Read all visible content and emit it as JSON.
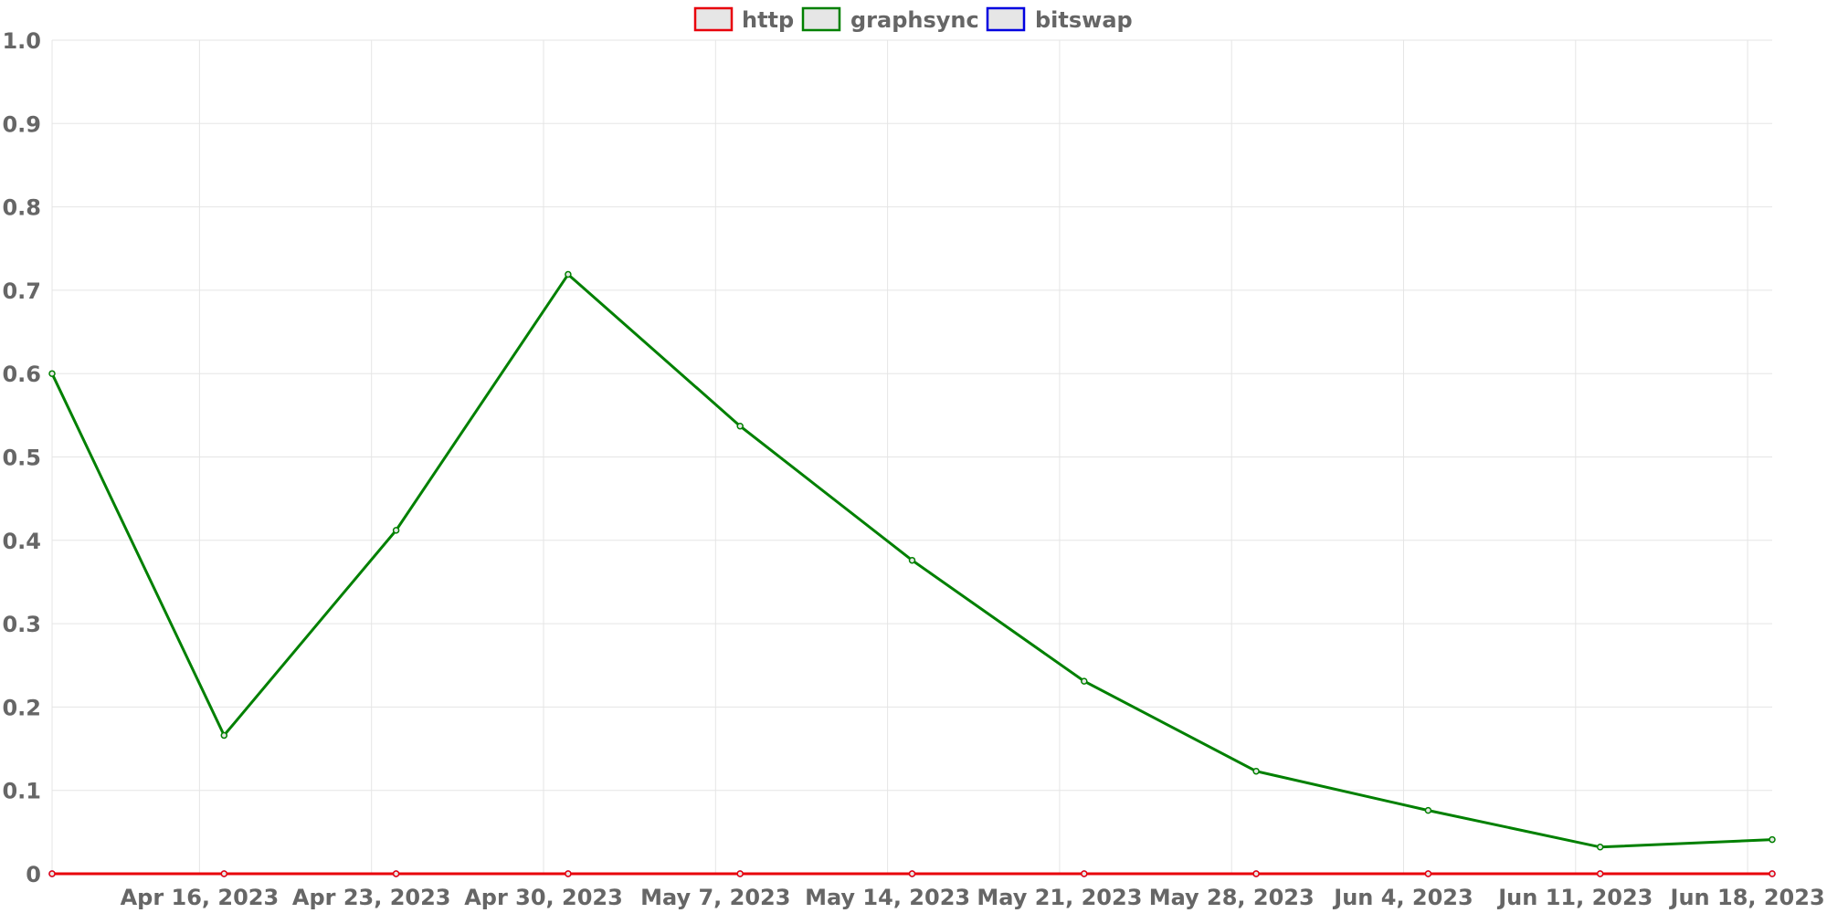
{
  "chart_data": {
    "type": "line",
    "title": "",
    "xlabel": "",
    "ylabel": "",
    "ylim": [
      0,
      1
    ],
    "y_ticks": [
      "0",
      "0.1",
      "0.2",
      "0.3",
      "0.4",
      "0.5",
      "0.6",
      "0.7",
      "0.8",
      "0.9",
      "1.0"
    ],
    "x_tick_labels": [
      "Apr 16, 2023",
      "Apr 23, 2023",
      "Apr 30, 2023",
      "May 7, 2023",
      "May 14, 2023",
      "May 21, 2023",
      "May 28, 2023",
      "Jun 4, 2023",
      "Jun 11, 2023",
      "Jun 18, 2023"
    ],
    "x_tick_dates": [
      "2023-04-16",
      "2023-04-23",
      "2023-04-30",
      "2023-05-07",
      "2023-05-14",
      "2023-05-21",
      "2023-05-28",
      "2023-06-04",
      "2023-06-11",
      "2023-06-18"
    ],
    "x_range": [
      "2023-04-10",
      "2023-06-19"
    ],
    "x": [
      "2023-04-10",
      "2023-04-17",
      "2023-04-24",
      "2023-05-01",
      "2023-05-08",
      "2023-05-15",
      "2023-05-22",
      "2023-05-29",
      "2023-06-05",
      "2023-06-12",
      "2023-06-19"
    ],
    "grid": true,
    "legend_position": "top-center",
    "series": [
      {
        "name": "http",
        "color": "#e8000b",
        "values": [
          0,
          0,
          0,
          0,
          0,
          0,
          0,
          0,
          0,
          0,
          0
        ]
      },
      {
        "name": "graphsync",
        "color": "#008000",
        "values": [
          0.6,
          0.166,
          0.412,
          0.719,
          0.537,
          0.376,
          0.231,
          0.123,
          0.076,
          0.032,
          0.041
        ]
      },
      {
        "name": "bitswap",
        "color": "#0000e0",
        "values": [
          0,
          0,
          0,
          0,
          0,
          0,
          0,
          0,
          0,
          0,
          0
        ]
      }
    ],
    "legend_fill": "#e6e6e6"
  }
}
